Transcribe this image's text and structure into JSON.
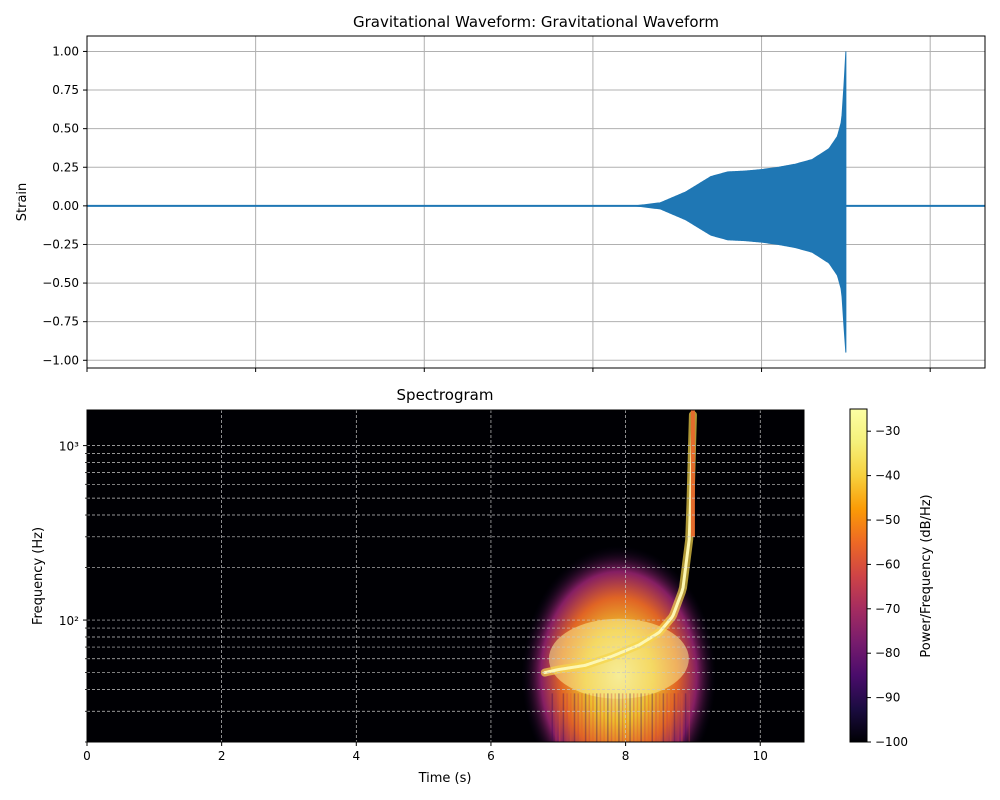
{
  "chart_data": [
    {
      "type": "line",
      "title": "Gravitational Waveform: Gravitational Waveform",
      "xlabel": "",
      "ylabel": "Strain",
      "xlim": [
        0,
        10.65
      ],
      "ylim": [
        -1.05,
        1.1
      ],
      "yticks": [
        1.0,
        0.75,
        0.5,
        0.25,
        0.0,
        -0.25,
        -0.5,
        -0.75,
        -1.0
      ],
      "ytick_labels": [
        "1.00",
        "0.75",
        "0.50",
        "0.25",
        "0.00",
        "−0.25",
        "−0.50",
        "−0.75",
        "−1.00"
      ],
      "xticks": [
        0,
        2,
        4,
        6,
        8,
        10
      ],
      "grid": true,
      "series": [
        {
          "color": "#1f77b4",
          "envelope": {
            "t": [
              0,
              6.5,
              6.8,
              7.1,
              7.4,
              7.6,
              7.8,
              8.0,
              8.2,
              8.4,
              8.6,
              8.8,
              8.9,
              8.95,
              8.98,
              9.0
            ],
            "upper": [
              0,
              0.0,
              0.02,
              0.09,
              0.19,
              0.22,
              0.225,
              0.235,
              0.25,
              0.27,
              0.3,
              0.37,
              0.45,
              0.55,
              0.8,
              1.0
            ],
            "lower": [
              0,
              0.0,
              -0.02,
              -0.09,
              -0.19,
              -0.22,
              -0.225,
              -0.235,
              -0.25,
              -0.27,
              -0.3,
              -0.37,
              -0.45,
              -0.55,
              -0.8,
              -0.95
            ]
          },
          "end_time": 9.0
        }
      ]
    },
    {
      "type": "heatmap",
      "title": "Spectrogram",
      "xlabel": "Time (s)",
      "ylabel": "Frequency (Hz)",
      "xlim": [
        0,
        10.65
      ],
      "ylim": [
        20,
        1600
      ],
      "yscale": "log",
      "xticks": [
        0,
        2,
        4,
        6,
        8,
        10
      ],
      "ytick_labels": [
        "10²",
        "10³"
      ],
      "yticks": [
        100,
        1000
      ],
      "grid": true,
      "colormap": "inferno",
      "colorbar": {
        "label": "Power/Frequency (dB/Hz)",
        "range": [
          -100,
          -25
        ],
        "ticks": [
          -30,
          -40,
          -50,
          -60,
          -70,
          -80,
          -90,
          -100
        ],
        "tick_labels": [
          "−30",
          "−40",
          "−50",
          "−60",
          "−70",
          "−80",
          "−90",
          "−100"
        ]
      },
      "chirp_track": {
        "t": [
          6.8,
          7.0,
          7.4,
          7.8,
          8.2,
          8.5,
          8.7,
          8.85,
          8.95,
          9.0
        ],
        "f": [
          50,
          52,
          55,
          62,
          72,
          85,
          105,
          150,
          300,
          1500
        ]
      }
    }
  ]
}
